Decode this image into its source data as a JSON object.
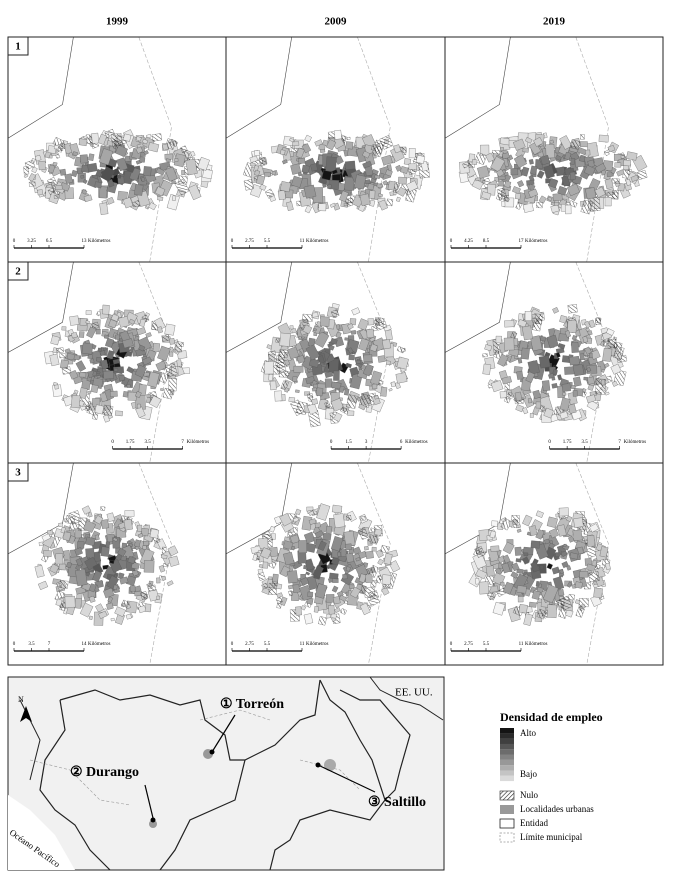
{
  "columns": [
    "1999",
    "2009",
    "2019"
  ],
  "rows": [
    {
      "label": "1",
      "panels": [
        {
          "scale": [
            "0",
            "3.25",
            "6.5",
            "13"
          ],
          "unit": "Kilómetros"
        },
        {
          "scale": [
            "0",
            "2.75",
            "5.5",
            "11"
          ],
          "unit": "Kilómetros"
        },
        {
          "scale": [
            "0",
            "4.25",
            "8.5",
            "17"
          ],
          "unit": "Kilómetros"
        }
      ]
    },
    {
      "label": "2",
      "panels": [
        {
          "scale": [
            "0",
            "1.75",
            "3.5",
            "7"
          ],
          "unit": "Kilómetros"
        },
        {
          "scale": [
            "0",
            "1.5",
            "3",
            "6"
          ],
          "unit": "Kilómetros"
        },
        {
          "scale": [
            "0",
            "1.75",
            "3.5",
            "7"
          ],
          "unit": "Kilómetros"
        }
      ]
    },
    {
      "label": "3",
      "panels": [
        {
          "scale": [
            "0",
            "3.5",
            "7",
            "14"
          ],
          "unit": "Kilómetros"
        },
        {
          "scale": [
            "0",
            "2.75",
            "5.5",
            "11"
          ],
          "unit": "Kilómetros"
        },
        {
          "scale": [
            "0",
            "2.75",
            "5.5",
            "11"
          ],
          "unit": "Kilómetros"
        }
      ]
    }
  ],
  "locator_map": {
    "north": "N",
    "country": "EE. UU.",
    "ocean": "Océano Pacífico",
    "cities": [
      "① Torreón",
      "② Durango",
      "③ Saltillo"
    ]
  },
  "legend": {
    "title": "Densidad de empleo",
    "high": "Alto",
    "low": "Bajo",
    "items": [
      "Nulo",
      "Localidades urbanas",
      "Entidad",
      "Límite municipal"
    ]
  }
}
